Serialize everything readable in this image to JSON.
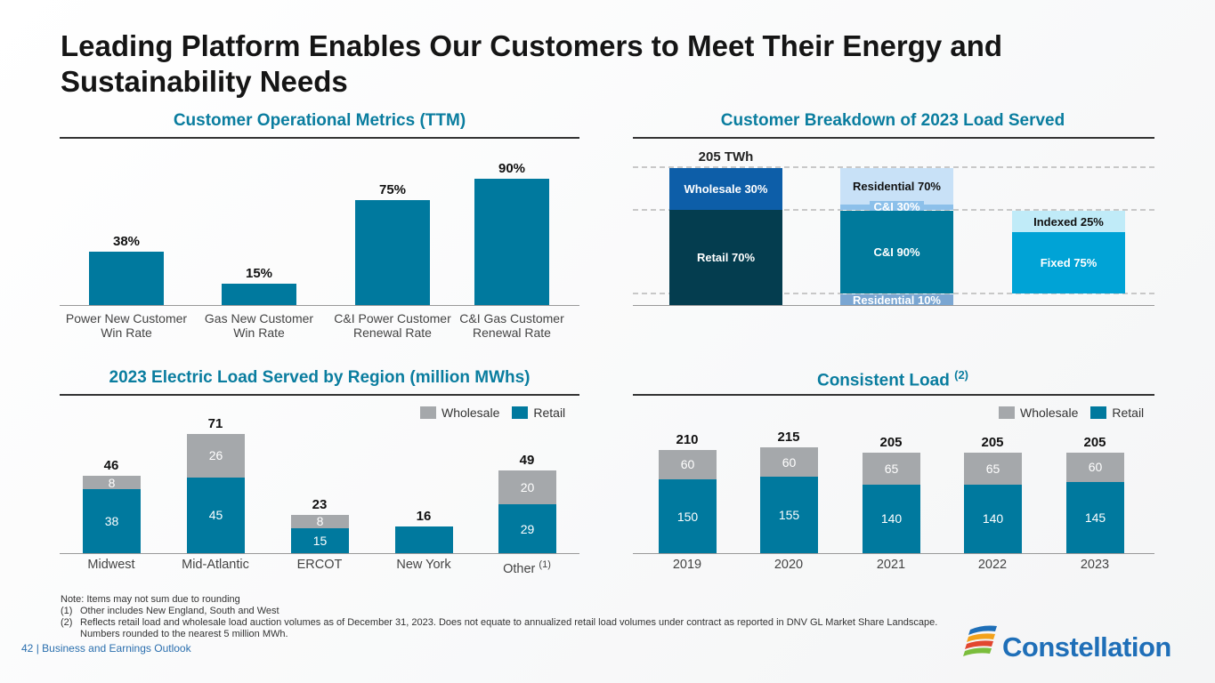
{
  "title": "Leading Platform Enables Our Customers to Meet Their Energy and Sustainability Needs",
  "colors": {
    "accent": "#0a7d9f",
    "retail": "#00799e",
    "wholesale": "#a5a8ab"
  },
  "chart_data": [
    {
      "type": "bar",
      "title": "Customer Operational Metrics (TTM)",
      "categories": [
        "Power New Customer Win Rate",
        "Gas New Customer Win Rate",
        "C&I Power Customer Renewal Rate",
        "C&I Gas Customer Renewal Rate"
      ],
      "values": [
        38,
        15,
        75,
        90
      ],
      "labels": [
        "38%",
        "15%",
        "75%",
        "90%"
      ],
      "unit": "%"
    },
    {
      "type": "bar",
      "stacked": true,
      "title": "Customer Breakdown of 2023 Load Served",
      "total_label": "205 TWh",
      "columns": [
        {
          "segments": [
            {
              "name": "Retail",
              "value": 70,
              "label": "Retail 70%",
              "color": "#043d4f"
            },
            {
              "name": "Wholesale",
              "value": 30,
              "label": "Wholesale 30%",
              "color": "#0d5ea8"
            }
          ]
        },
        {
          "segments": [
            {
              "name": "Residential",
              "value": 10,
              "label": "Residential 10%",
              "color": "#7aa6d2"
            },
            {
              "name": "C&I",
              "value": 90,
              "label": "C&I 90%",
              "color": "#007a9c"
            },
            {
              "name": "C&I",
              "value": 30,
              "label": "C&I 30%",
              "color": "#8cc0ea"
            },
            {
              "name": "Residential",
              "value": 70,
              "label": "Residential 70%",
              "color": "#c8e1f7"
            }
          ]
        },
        {
          "segments": [
            {
              "name": "Fixed",
              "value": 75,
              "label": "Fixed 75%",
              "color": "#00a3d6"
            },
            {
              "name": "Indexed",
              "value": 25,
              "label": "Indexed 25%",
              "color": "#c0ebf8"
            }
          ]
        }
      ]
    },
    {
      "type": "bar",
      "stacked": true,
      "title": "2023 Electric Load Served by Region (million MWhs)",
      "legend": [
        "Wholesale",
        "Retail"
      ],
      "legend_position": "top-right",
      "categories": [
        "Midwest",
        "Mid-Atlantic",
        "ERCOT",
        "New York",
        "Other"
      ],
      "category_notes": [
        "",
        "",
        "",
        "",
        "(1)"
      ],
      "series": [
        {
          "name": "Retail",
          "values": [
            38,
            45,
            15,
            16,
            29
          ]
        },
        {
          "name": "Wholesale",
          "values": [
            8,
            26,
            8,
            0,
            20
          ]
        }
      ],
      "totals": [
        46,
        71,
        23,
        16,
        49
      ]
    },
    {
      "type": "bar",
      "stacked": true,
      "title": "Consistent Load",
      "title_note": "(2)",
      "legend": [
        "Wholesale",
        "Retail"
      ],
      "legend_position": "top-right",
      "categories": [
        "2019",
        "2020",
        "2021",
        "2022",
        "2023"
      ],
      "series": [
        {
          "name": "Retail",
          "values": [
            150,
            155,
            140,
            140,
            145
          ]
        },
        {
          "name": "Wholesale",
          "values": [
            60,
            60,
            65,
            65,
            60
          ]
        }
      ],
      "totals": [
        210,
        215,
        205,
        205,
        205
      ]
    }
  ],
  "notes": {
    "note": "Note: Items may not sum due to rounding",
    "items": [
      {
        "num": "(1)",
        "text": "Other includes New England, South and West"
      },
      {
        "num": "(2)",
        "text": "Reflects retail load and wholesale load auction volumes as of December 31, 2023. Does not equate to annualized retail load volumes under contract as reported in DNV GL Market Share Landscape. Numbers rounded to the nearest 5 million MWh."
      }
    ]
  },
  "footer": {
    "page": "42",
    "section": "Business and Earnings Outlook"
  },
  "logo": {
    "text": "Constellation"
  }
}
